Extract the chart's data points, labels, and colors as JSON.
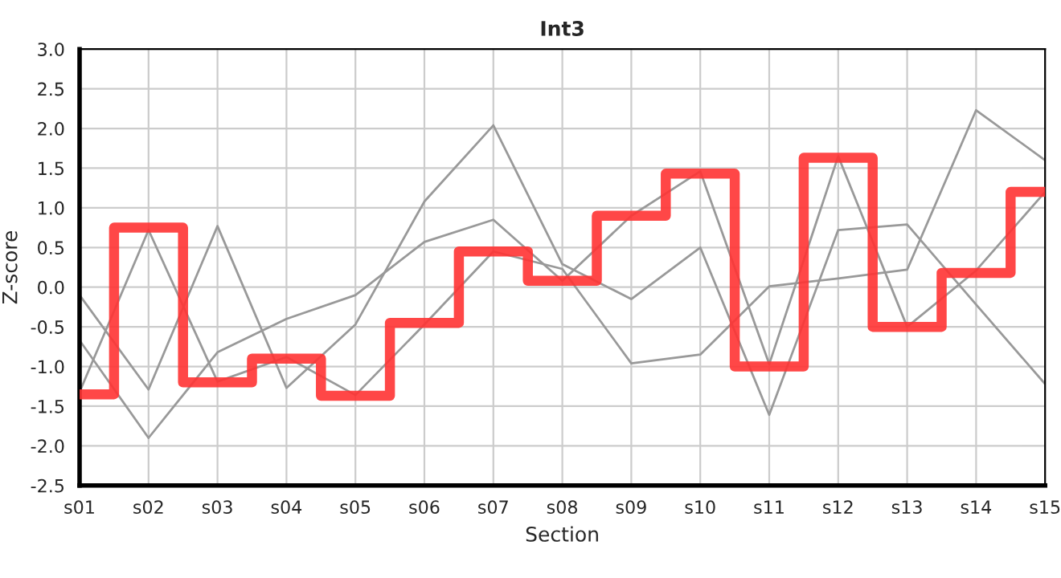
{
  "chart_data": {
    "type": "line",
    "title": "Int3",
    "xlabel": "Section",
    "ylabel": "Z-score",
    "categories": [
      "s01",
      "s02",
      "s03",
      "s04",
      "s05",
      "s06",
      "s07",
      "s08",
      "s09",
      "s10",
      "s11",
      "s12",
      "s13",
      "s14",
      "s15"
    ],
    "series": [
      {
        "color": "#999999",
        "values": [
          -0.1,
          -1.29,
          0.77,
          -1.27,
          -0.47,
          1.08,
          2.04,
          0.29,
          -0.15,
          0.5,
          -1.61,
          0.72,
          0.79,
          -0.22,
          -1.22
        ]
      },
      {
        "color": "#999999",
        "values": [
          -0.67,
          -1.9,
          -0.82,
          -0.4,
          -0.1,
          0.57,
          0.85,
          0.08,
          0.9,
          1.46,
          -0.97,
          1.65,
          -0.5,
          0.21,
          1.2
        ]
      },
      {
        "color": "#999999",
        "values": [
          -1.32,
          0.72,
          -1.19,
          -0.88,
          -1.36,
          -0.47,
          0.45,
          0.23,
          -0.96,
          -0.85,
          0.01,
          0.11,
          0.22,
          2.23,
          1.6
        ]
      },
      {
        "type": "step",
        "color": "#ff3333",
        "values": [
          -1.35,
          0.75,
          -1.2,
          -0.9,
          -1.37,
          -0.45,
          0.45,
          0.08,
          0.9,
          1.43,
          -1.0,
          1.63,
          -0.5,
          0.18,
          1.2
        ]
      }
    ],
    "ylim": [
      -2.5,
      3.0
    ],
    "yticks": [
      -2.5,
      {
        "value": -2,
        "label": "-2.0"
      },
      -1.5,
      {
        "value": -1,
        "label": "-1.0"
      },
      -0.5,
      {
        "value": 0,
        "label": "0.0"
      },
      0.5,
      {
        "value": 1,
        "label": "1.0"
      },
      1.5,
      {
        "value": 2,
        "label": "2.0"
      },
      2.5,
      {
        "value": 3,
        "label": "3.0"
      }
    ],
    "grid": true,
    "legend": false
  }
}
